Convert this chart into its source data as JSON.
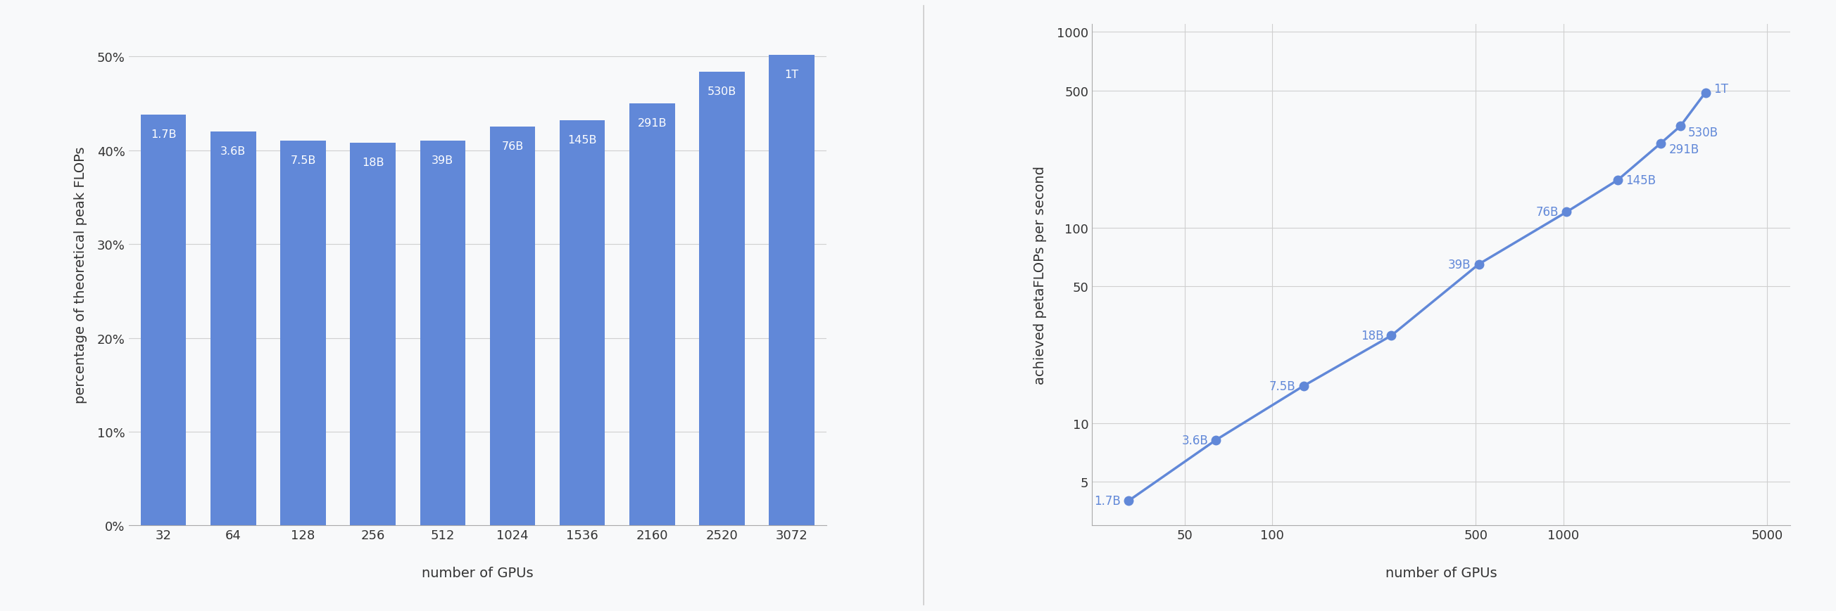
{
  "bar_gpus": [
    32,
    64,
    128,
    256,
    512,
    1024,
    1536,
    2160,
    2520,
    3072
  ],
  "bar_labels": [
    "1.7B",
    "3.6B",
    "7.5B",
    "18B",
    "39B",
    "76B",
    "145B",
    "291B",
    "530B",
    "1T"
  ],
  "bar_values": [
    0.438,
    0.42,
    0.41,
    0.408,
    0.41,
    0.425,
    0.432,
    0.45,
    0.484,
    0.502
  ],
  "bar_color": "#6188d8",
  "bar_ylabel": "percentage of theoretical peak FLOPs",
  "bar_xlabel": "number of GPUs",
  "bar_yticks": [
    0.0,
    0.1,
    0.2,
    0.3,
    0.4,
    0.5
  ],
  "scatter_gpus": [
    32,
    64,
    128,
    256,
    512,
    1024,
    1536,
    2160,
    2520,
    3072
  ],
  "scatter_labels": [
    "1.7B",
    "3.6B",
    "7.5B",
    "18B",
    "39B",
    "76B",
    "145B",
    "291B",
    "530B",
    "1T"
  ],
  "scatter_petaflops": [
    4.0,
    8.2,
    15.5,
    28.0,
    65.0,
    120.0,
    175.0,
    270.0,
    330.0,
    490.0
  ],
  "scatter_color": "#6188d8",
  "scatter_ylabel": "achieved petaFLOPs per second",
  "scatter_xlabel": "number of GPUs",
  "line_color": "#6188d8",
  "background_color": "#f8f9fa",
  "text_color": "#333333",
  "bar_text_color": "#ffffff",
  "scatter_label_color": "#6188d8",
  "grid_color": "#d0d0d0",
  "divider_color": "#cccccc"
}
